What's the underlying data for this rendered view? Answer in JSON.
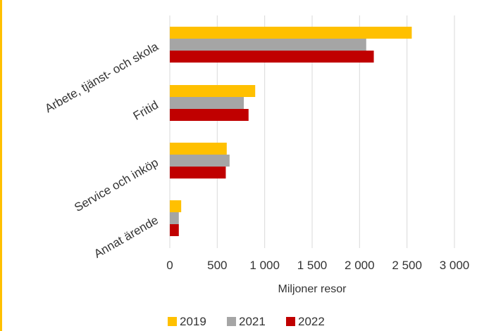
{
  "chart_data": {
    "type": "bar",
    "orientation": "horizontal",
    "categories": [
      "Arbete, tjänst- och skola",
      "Fritid",
      "Service och inköp",
      "Annat ärende"
    ],
    "series": [
      {
        "name": "2019",
        "values": [
          2550,
          900,
          600,
          120
        ]
      },
      {
        "name": "2021",
        "values": [
          2070,
          780,
          630,
          95
        ]
      },
      {
        "name": "2022",
        "values": [
          2150,
          830,
          590,
          95
        ]
      }
    ],
    "x_ticks": [
      0,
      500,
      1000,
      1500,
      2000,
      2500,
      3000
    ],
    "x_tick_labels": [
      "0",
      "500",
      "1 000",
      "1 500",
      "2 000",
      "2 500",
      "3 000"
    ],
    "xlim": [
      0,
      3000
    ],
    "xlabel": "Miljoner resor",
    "ylabel": "",
    "title": "",
    "grid": "vertical",
    "legend_position": "bottom"
  },
  "colors": {
    "series": [
      "#FFC000",
      "#A5A5A5",
      "#C00000"
    ],
    "gridline": "#D9D9D9",
    "accent": "#FFC000"
  }
}
